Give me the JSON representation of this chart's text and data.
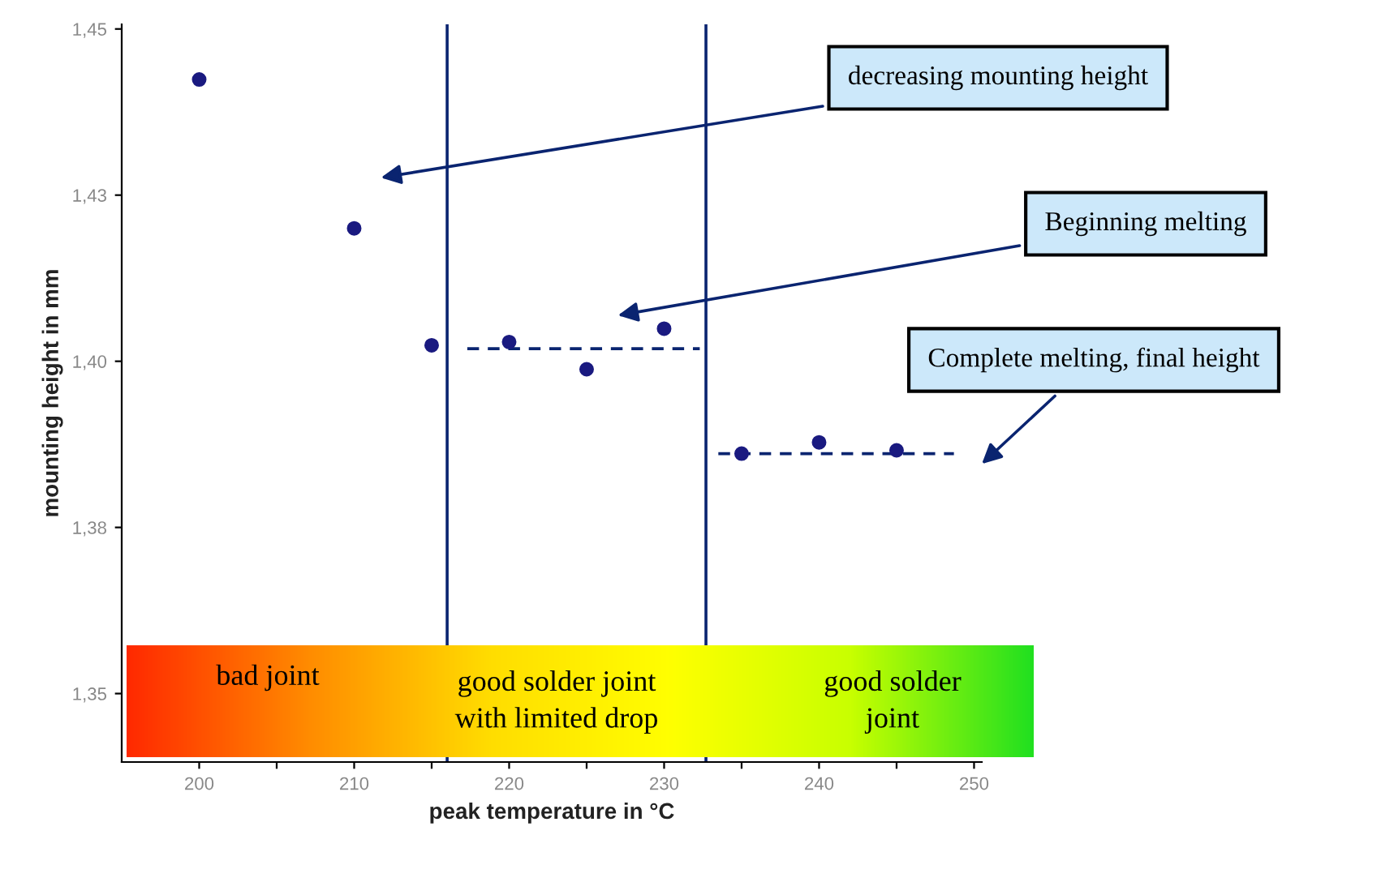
{
  "chart_data": {
    "type": "scatter",
    "xlabel": "peak temperature in °C",
    "ylabel": "mounting height in mm",
    "xlim": [
      195,
      250.5
    ],
    "ylim": [
      1.3397,
      1.4507
    ],
    "xticks": [
      200,
      {
        "value": 205,
        "label": null
      },
      210,
      {
        "value": 215,
        "label": null
      },
      220,
      {
        "value": 225,
        "label": null
      },
      230,
      {
        "value": 235,
        "label": null
      },
      240,
      {
        "value": 245,
        "label": null
      },
      250
    ],
    "yticks": [
      {
        "value": 1.35,
        "label": "1,35"
      },
      {
        "value": 1.375,
        "label": "1,38"
      },
      {
        "value": 1.4,
        "label": "1,40"
      },
      {
        "value": 1.425,
        "label": "1,43"
      },
      {
        "value": 1.45,
        "label": "1,45"
      }
    ],
    "grid": false,
    "marker": "circle",
    "series": [
      {
        "color": "#1a1a80",
        "x": [
          200,
          210,
          215,
          220,
          225,
          230,
          235,
          240,
          245
        ],
        "values": [
          1.4424,
          1.42,
          1.4024,
          1.4029,
          1.3988,
          1.4049,
          1.3861,
          1.3878,
          1.3866
        ]
      },
      {
        "type": "line",
        "color": "#0a2470",
        "line_style": "dashed",
        "marker": "none",
        "x": [
          217.3,
          232.3
        ],
        "values": [
          1.4019,
          1.4019
        ]
      },
      {
        "type": "line",
        "color": "#0a2470",
        "line_style": "dashed",
        "marker": "none",
        "x": [
          233.5,
          248.7
        ],
        "values": [
          1.3861,
          1.3861
        ]
      }
    ],
    "ref_lines": [
      {
        "axis": "x",
        "value": 216.0,
        "color": "#0a2470"
      },
      {
        "axis": "x",
        "value": 232.7,
        "color": "#0a2470"
      }
    ],
    "annotations": [
      "decreasing mounting height",
      "Beginning melting",
      "Complete melting, final height",
      "bad joint",
      "good solder joint\nwith limited drop",
      "good solder\njoint"
    ]
  }
}
